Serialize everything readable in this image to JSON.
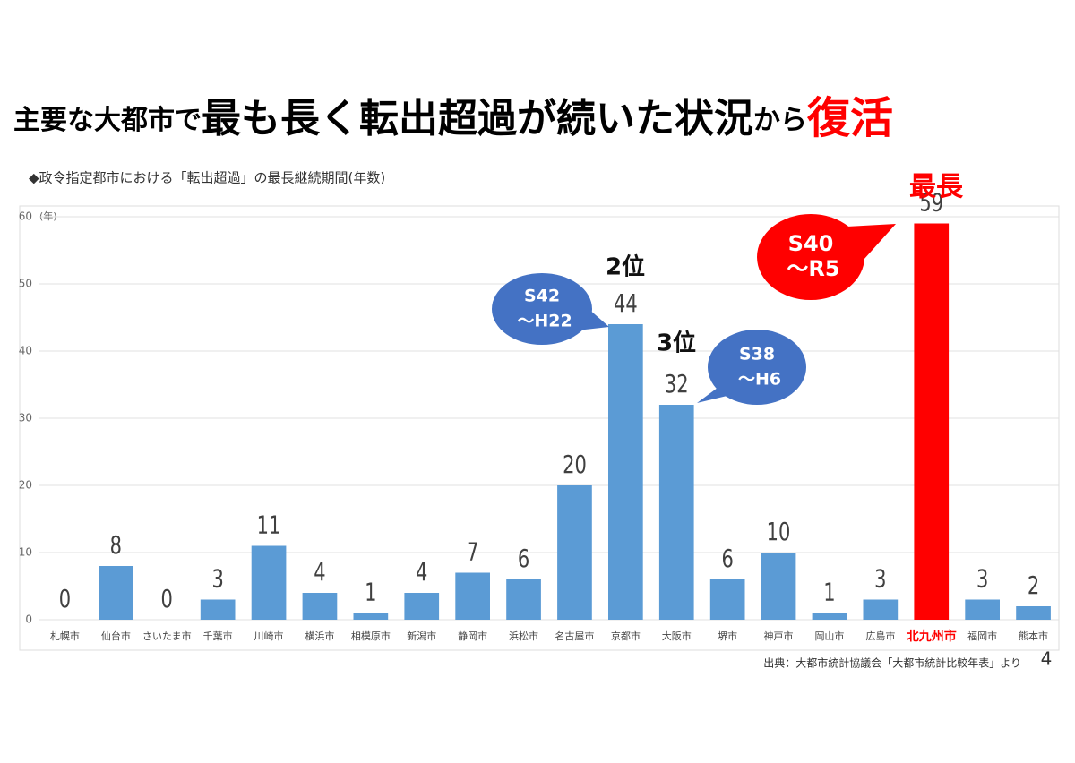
{
  "slide": {
    "title_parts": [
      "主要な大都市で",
      "最も長く転出超過が続いた状況",
      "から",
      "復活"
    ],
    "page_number": "4"
  },
  "chart_data": {
    "type": "bar",
    "subtitle": "◆政令指定都市における「転出超過」の最長継続期間(年数)",
    "y_unit": "(年)",
    "categories": [
      "札幌市",
      "仙台市",
      "さいたま市",
      "千葉市",
      "川崎市",
      "横浜市",
      "相模原市",
      "新潟市",
      "静岡市",
      "浜松市",
      "名古屋市",
      "京都市",
      "大阪市",
      "堺市",
      "神戸市",
      "岡山市",
      "広島市",
      "北九州市",
      "福岡市",
      "熊本市"
    ],
    "values": [
      0,
      8,
      0,
      3,
      11,
      4,
      1,
      4,
      7,
      6,
      20,
      44,
      32,
      6,
      10,
      1,
      3,
      59,
      3,
      2
    ],
    "color": "#5b9bd5",
    "colors": [
      "#5b9bd5",
      "#5b9bd5",
      "#5b9bd5",
      "#5b9bd5",
      "#5b9bd5",
      "#5b9bd5",
      "#5b9bd5",
      "#5b9bd5",
      "#5b9bd5",
      "#5b9bd5",
      "#5b9bd5",
      "#5b9bd5",
      "#5b9bd5",
      "#5b9bd5",
      "#5b9bd5",
      "#5b9bd5",
      "#5b9bd5",
      "#ff0000",
      "#5b9bd5",
      "#5b9bd5"
    ],
    "ylim": [
      0,
      60
    ],
    "yticks": [
      0,
      10,
      20,
      30,
      40,
      50,
      60
    ],
    "grid": true,
    "annotations": [
      "最長",
      "2位",
      "3位"
    ],
    "callouts": [
      {
        "lines": [
          "S40",
          "～R5"
        ],
        "color": "#ff0000"
      },
      {
        "lines": [
          "S42",
          "～H22"
        ],
        "color": "#4472c4"
      },
      {
        "lines": [
          "S38",
          "～H6"
        ],
        "color": "#4472c4"
      }
    ],
    "source": "出典：大都市統計協議会「大都市統計比較年表」より"
  }
}
